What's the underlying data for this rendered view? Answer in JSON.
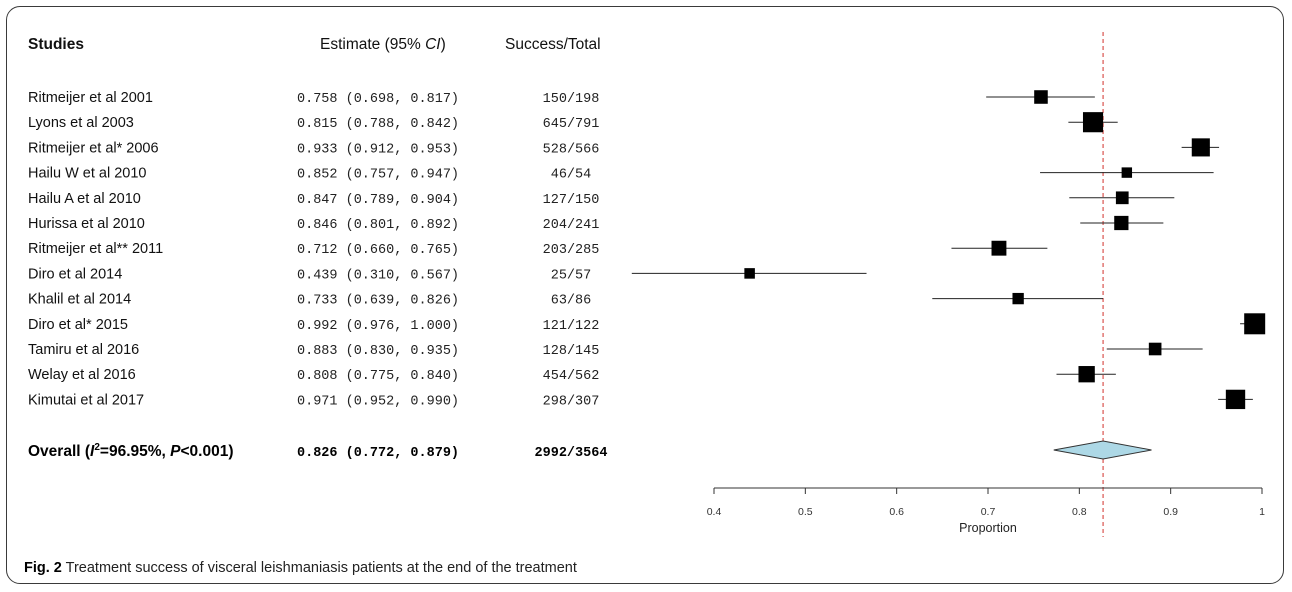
{
  "headers": {
    "studies": "Studies",
    "estimate_prefix": "Estimate (95% ",
    "estimate_ci": "CI",
    "estimate_suffix": ")",
    "success": "Success/Total"
  },
  "overall_label": {
    "prefix": "Overall (",
    "i2": "I",
    "sup": "2",
    "middle": "=96.95%, ",
    "p": "P",
    "suffix": "<0.001)"
  },
  "caption": {
    "fig": "Fig. 2",
    "text": " Treatment success of visceral leishmaniasis patients at the end of the treatment"
  },
  "chart_data": {
    "type": "forest",
    "xlabel": "Proportion",
    "xlim": [
      0.4,
      1.0
    ],
    "xticks": [
      "0.4",
      "0.5",
      "0.6",
      "0.7",
      "0.8",
      "0.9",
      "1"
    ],
    "reference_line": 0.826,
    "studies": [
      {
        "name": "Ritmeijer et al 2001",
        "estimate": 0.758,
        "lower": 0.698,
        "upper": 0.817,
        "ci_text": "0.758 (0.698, 0.817)",
        "success_total": "150/198",
        "weight": 198
      },
      {
        "name": "Lyons et al 2003",
        "estimate": 0.815,
        "lower": 0.788,
        "upper": 0.842,
        "ci_text": "0.815 (0.788, 0.842)",
        "success_total": "645/791",
        "weight": 791
      },
      {
        "name": "Ritmeijer et al* 2006",
        "estimate": 0.933,
        "lower": 0.912,
        "upper": 0.953,
        "ci_text": "0.933 (0.912, 0.953)",
        "success_total": "528/566",
        "weight": 566
      },
      {
        "name": "Hailu W et al 2010",
        "estimate": 0.852,
        "lower": 0.757,
        "upper": 0.947,
        "ci_text": "0.852 (0.757, 0.947)",
        "success_total": "46/54",
        "weight": 54
      },
      {
        "name": "Hailu A et al 2010",
        "estimate": 0.847,
        "lower": 0.789,
        "upper": 0.904,
        "ci_text": "0.847 (0.789, 0.904)",
        "success_total": "127/150",
        "weight": 150
      },
      {
        "name": "Hurissa et al 2010",
        "estimate": 0.846,
        "lower": 0.801,
        "upper": 0.892,
        "ci_text": "0.846 (0.801, 0.892)",
        "success_total": "204/241",
        "weight": 241
      },
      {
        "name": "Ritmeijer et al** 2011",
        "estimate": 0.712,
        "lower": 0.66,
        "upper": 0.765,
        "ci_text": "0.712 (0.660, 0.765)",
        "success_total": "203/285",
        "weight": 285
      },
      {
        "name": "Diro et al 2014",
        "estimate": 0.439,
        "lower": 0.31,
        "upper": 0.567,
        "ci_text": "0.439 (0.310, 0.567)",
        "success_total": "25/57",
        "weight": 57
      },
      {
        "name": "Khalil et al 2014",
        "estimate": 0.733,
        "lower": 0.639,
        "upper": 0.826,
        "ci_text": "0.733 (0.639, 0.826)",
        "success_total": "63/86",
        "weight": 86
      },
      {
        "name": "Diro et al* 2015",
        "estimate": 0.992,
        "lower": 0.976,
        "upper": 1.0,
        "ci_text": "0.992 (0.976, 1.000)",
        "success_total": "121/122",
        "weight": 900
      },
      {
        "name": "Tamiru et al 2016",
        "estimate": 0.883,
        "lower": 0.83,
        "upper": 0.935,
        "ci_text": "0.883 (0.830, 0.935)",
        "success_total": "128/145",
        "weight": 145
      },
      {
        "name": "Welay et al 2016",
        "estimate": 0.808,
        "lower": 0.775,
        "upper": 0.84,
        "ci_text": "0.808 (0.775, 0.840)",
        "success_total": "454/562",
        "weight": 400
      },
      {
        "name": "Kimutai et al 2017",
        "estimate": 0.971,
        "lower": 0.952,
        "upper": 0.99,
        "ci_text": "0.971 (0.952, 0.990)",
        "success_total": "298/307",
        "weight": 700
      }
    ],
    "overall": {
      "estimate": 0.826,
      "lower": 0.772,
      "upper": 0.879,
      "ci_text": "0.826 (0.772, 0.879)",
      "success_total": "2992/3564"
    }
  }
}
